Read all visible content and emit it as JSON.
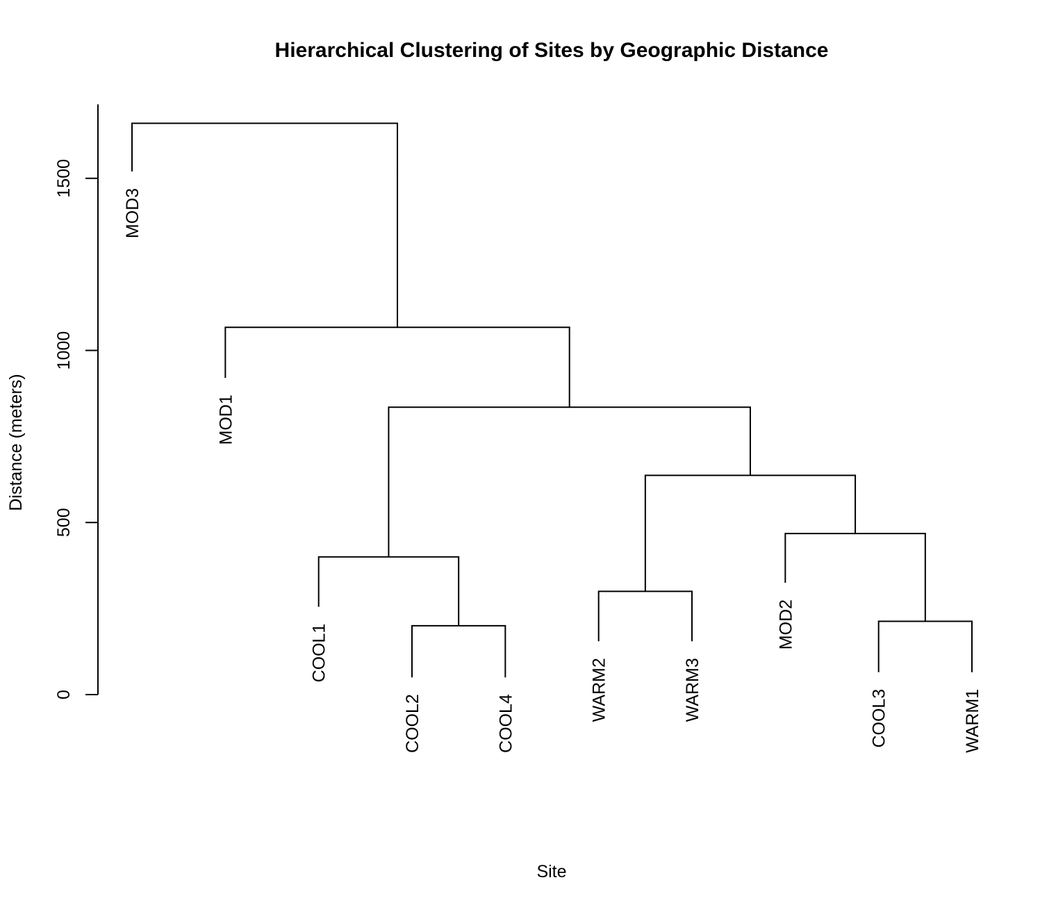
{
  "chart_data": {
    "type": "dendrogram",
    "title": "Hierarchical Clustering of Sites by Geographic Distance",
    "xlabel": "Site",
    "ylabel": "Distance (meters)",
    "ylim": [
      0,
      1740
    ],
    "yticks": [
      0,
      500,
      1000,
      1500
    ],
    "grid": false,
    "line_color": "#000000",
    "leaves": [
      {
        "label": "MOD3",
        "height": 1520
      },
      {
        "label": "MOD1",
        "height": 920
      },
      {
        "label": "COOL1",
        "height": 255
      },
      {
        "label": "COOL2",
        "height": 50
      },
      {
        "label": "COOL4",
        "height": 50
      },
      {
        "label": "WARM2",
        "height": 155
      },
      {
        "label": "WARM3",
        "height": 155
      },
      {
        "label": "MOD2",
        "height": 325
      },
      {
        "label": "COOL3",
        "height": 65
      },
      {
        "label": "WARM1",
        "height": 65
      }
    ],
    "merges": [
      {
        "left": "COOL2",
        "right": "COOL4",
        "height": 200
      },
      {
        "left": "COOL3",
        "right": "WARM1",
        "height": 213
      },
      {
        "left": "WARM2",
        "right": "WARM3",
        "height": 300
      },
      {
        "left": "COOL1",
        "right": "COOL2+COOL4",
        "height": 400
      },
      {
        "left": "MOD2",
        "right": "COOL3+WARM1",
        "height": 468
      },
      {
        "left": "WARM2+WARM3",
        "right": "MOD2+COOL3+WARM1",
        "height": 637
      },
      {
        "left": "COOL1+COOL2+COOL4",
        "right": "WARM2+WARM3+MOD2+COOL3+WARM1",
        "height": 835
      },
      {
        "left": "MOD1",
        "right": "COOL1+COOL2+COOL4+WARM2+WARM3+MOD2+COOL3+WARM1",
        "height": 1067
      },
      {
        "left": "MOD3",
        "right": "MOD1+COOL1+COOL2+COOL4+WARM2+WARM3+MOD2+COOL3+WARM1",
        "height": 1660
      }
    ]
  }
}
